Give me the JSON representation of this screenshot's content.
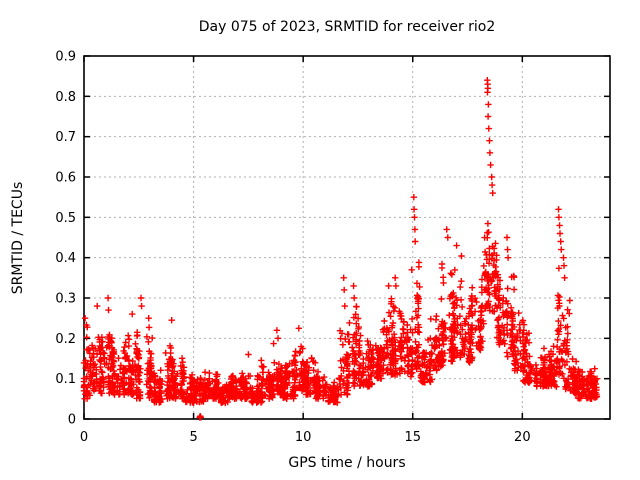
{
  "chart_data": {
    "type": "scatter",
    "title": "Day 075 of 2023, SRMTID for receiver rio2",
    "xlabel": "GPS time / hours",
    "ylabel": "SRMTID / TECUs",
    "xlim": [
      0,
      24
    ],
    "ylim": [
      0,
      0.9
    ],
    "x_ticks": [
      0,
      5,
      10,
      15,
      20
    ],
    "x_tick_labels": [
      "0",
      "5",
      "10",
      "15",
      "20"
    ],
    "y_ticks": [
      0,
      0.1,
      0.2,
      0.3,
      0.4,
      0.5,
      0.6,
      0.7,
      0.8,
      0.9
    ],
    "y_tick_labels": [
      "0",
      "0.1",
      "0.2",
      "0.3",
      "0.4",
      "0.5",
      "0.6",
      "0.7",
      "0.8",
      "0.9"
    ],
    "grid": true,
    "legend": false,
    "marker": "plus",
    "marker_color": "#ff0000",
    "grid_color": "#b0b0b0",
    "axis_color": "#000000",
    "seed": 20230075,
    "density_bins_columns": [
      "t_start_hours",
      "t_end_hours",
      "n_points",
      "y_min_tecus",
      "y_max_tecus"
    ],
    "density_bins": [
      [
        0.0,
        0.3,
        34,
        0.05,
        0.24
      ],
      [
        0.3,
        0.7,
        44,
        0.07,
        0.26
      ],
      [
        0.7,
        1.2,
        55,
        0.06,
        0.27
      ],
      [
        1.2,
        1.7,
        55,
        0.06,
        0.21
      ],
      [
        1.7,
        2.2,
        55,
        0.06,
        0.24
      ],
      [
        2.2,
        2.7,
        55,
        0.05,
        0.28
      ],
      [
        2.7,
        3.1,
        44,
        0.05,
        0.24
      ],
      [
        3.1,
        3.6,
        55,
        0.04,
        0.17
      ],
      [
        3.6,
        4.1,
        55,
        0.05,
        0.2
      ],
      [
        4.1,
        4.6,
        55,
        0.05,
        0.17
      ],
      [
        4.6,
        5.1,
        55,
        0.04,
        0.12
      ],
      [
        5.1,
        5.6,
        55,
        0.04,
        0.12
      ],
      [
        5.6,
        6.1,
        55,
        0.05,
        0.12
      ],
      [
        6.1,
        6.6,
        55,
        0.04,
        0.11
      ],
      [
        6.6,
        7.1,
        55,
        0.05,
        0.12
      ],
      [
        7.1,
        7.6,
        55,
        0.05,
        0.14
      ],
      [
        7.6,
        8.1,
        55,
        0.04,
        0.13
      ],
      [
        8.1,
        8.6,
        55,
        0.05,
        0.15
      ],
      [
        8.6,
        9.1,
        55,
        0.06,
        0.2
      ],
      [
        9.1,
        9.6,
        55,
        0.05,
        0.15
      ],
      [
        9.6,
        10.1,
        55,
        0.07,
        0.19
      ],
      [
        10.1,
        10.6,
        55,
        0.06,
        0.16
      ],
      [
        10.6,
        11.1,
        55,
        0.05,
        0.12
      ],
      [
        11.1,
        11.6,
        55,
        0.04,
        0.11
      ],
      [
        11.6,
        12.1,
        55,
        0.06,
        0.26
      ],
      [
        12.1,
        12.6,
        55,
        0.08,
        0.3
      ],
      [
        12.6,
        13.1,
        55,
        0.08,
        0.22
      ],
      [
        13.1,
        13.6,
        55,
        0.1,
        0.27
      ],
      [
        13.6,
        14.1,
        55,
        0.11,
        0.31
      ],
      [
        14.1,
        14.6,
        55,
        0.11,
        0.3
      ],
      [
        14.6,
        15.0,
        44,
        0.1,
        0.28
      ],
      [
        15.0,
        15.35,
        38,
        0.12,
        0.42
      ],
      [
        15.35,
        15.85,
        55,
        0.09,
        0.22
      ],
      [
        15.85,
        16.35,
        55,
        0.12,
        0.3
      ],
      [
        16.35,
        16.85,
        55,
        0.14,
        0.4
      ],
      [
        16.85,
        17.35,
        55,
        0.15,
        0.42
      ],
      [
        17.35,
        17.85,
        55,
        0.14,
        0.34
      ],
      [
        17.85,
        18.2,
        38,
        0.17,
        0.36
      ],
      [
        18.2,
        18.55,
        38,
        0.25,
        0.66
      ],
      [
        18.55,
        18.85,
        33,
        0.26,
        0.58
      ],
      [
        18.85,
        19.25,
        44,
        0.18,
        0.44
      ],
      [
        19.25,
        19.65,
        44,
        0.15,
        0.38
      ],
      [
        19.65,
        20.05,
        44,
        0.12,
        0.3
      ],
      [
        20.05,
        20.55,
        55,
        0.09,
        0.25
      ],
      [
        20.55,
        21.05,
        55,
        0.08,
        0.18
      ],
      [
        21.05,
        21.55,
        55,
        0.08,
        0.21
      ],
      [
        21.55,
        21.85,
        33,
        0.11,
        0.48
      ],
      [
        21.85,
        22.15,
        33,
        0.07,
        0.38
      ],
      [
        22.15,
        22.55,
        44,
        0.06,
        0.16
      ],
      [
        22.55,
        23.05,
        55,
        0.05,
        0.15
      ],
      [
        23.05,
        23.45,
        44,
        0.05,
        0.13
      ]
    ],
    "spike_points": [
      [
        0.05,
        0.25
      ],
      [
        0.6,
        0.28
      ],
      [
        1.1,
        0.3
      ],
      [
        1.12,
        0.27
      ],
      [
        2.2,
        0.26
      ],
      [
        2.6,
        0.3
      ],
      [
        2.63,
        0.28
      ],
      [
        2.95,
        0.25
      ],
      [
        4.0,
        0.245
      ],
      [
        5.28,
        0.004
      ],
      [
        5.3,
        0.007
      ],
      [
        5.33,
        0.004
      ],
      [
        7.5,
        0.16
      ],
      [
        8.8,
        0.22
      ],
      [
        8.85,
        0.2
      ],
      [
        9.8,
        0.225
      ],
      [
        11.85,
        0.35
      ],
      [
        11.87,
        0.32
      ],
      [
        11.9,
        0.28
      ],
      [
        12.3,
        0.33
      ],
      [
        12.33,
        0.3
      ],
      [
        13.9,
        0.33
      ],
      [
        14.2,
        0.35
      ],
      [
        14.23,
        0.33
      ],
      [
        14.95,
        0.37
      ],
      [
        15.05,
        0.55
      ],
      [
        15.06,
        0.52
      ],
      [
        15.08,
        0.5
      ],
      [
        15.1,
        0.47
      ],
      [
        15.11,
        0.44
      ],
      [
        16.55,
        0.47
      ],
      [
        16.6,
        0.45
      ],
      [
        17.0,
        0.43
      ],
      [
        18.4,
        0.84
      ],
      [
        18.42,
        0.83
      ],
      [
        18.43,
        0.82
      ],
      [
        18.41,
        0.81
      ],
      [
        18.45,
        0.78
      ],
      [
        18.44,
        0.75
      ],
      [
        18.47,
        0.72
      ],
      [
        18.5,
        0.69
      ],
      [
        18.52,
        0.66
      ],
      [
        18.55,
        0.63
      ],
      [
        18.6,
        0.6
      ],
      [
        18.62,
        0.58
      ],
      [
        18.65,
        0.56
      ],
      [
        19.3,
        0.45
      ],
      [
        19.33,
        0.42
      ],
      [
        19.35,
        0.4
      ],
      [
        21.65,
        0.52
      ],
      [
        21.67,
        0.5
      ],
      [
        21.7,
        0.48
      ],
      [
        21.72,
        0.46
      ],
      [
        21.75,
        0.44
      ],
      [
        21.78,
        0.42
      ],
      [
        21.88,
        0.4
      ],
      [
        21.9,
        0.38
      ],
      [
        21.93,
        0.35
      ]
    ]
  }
}
